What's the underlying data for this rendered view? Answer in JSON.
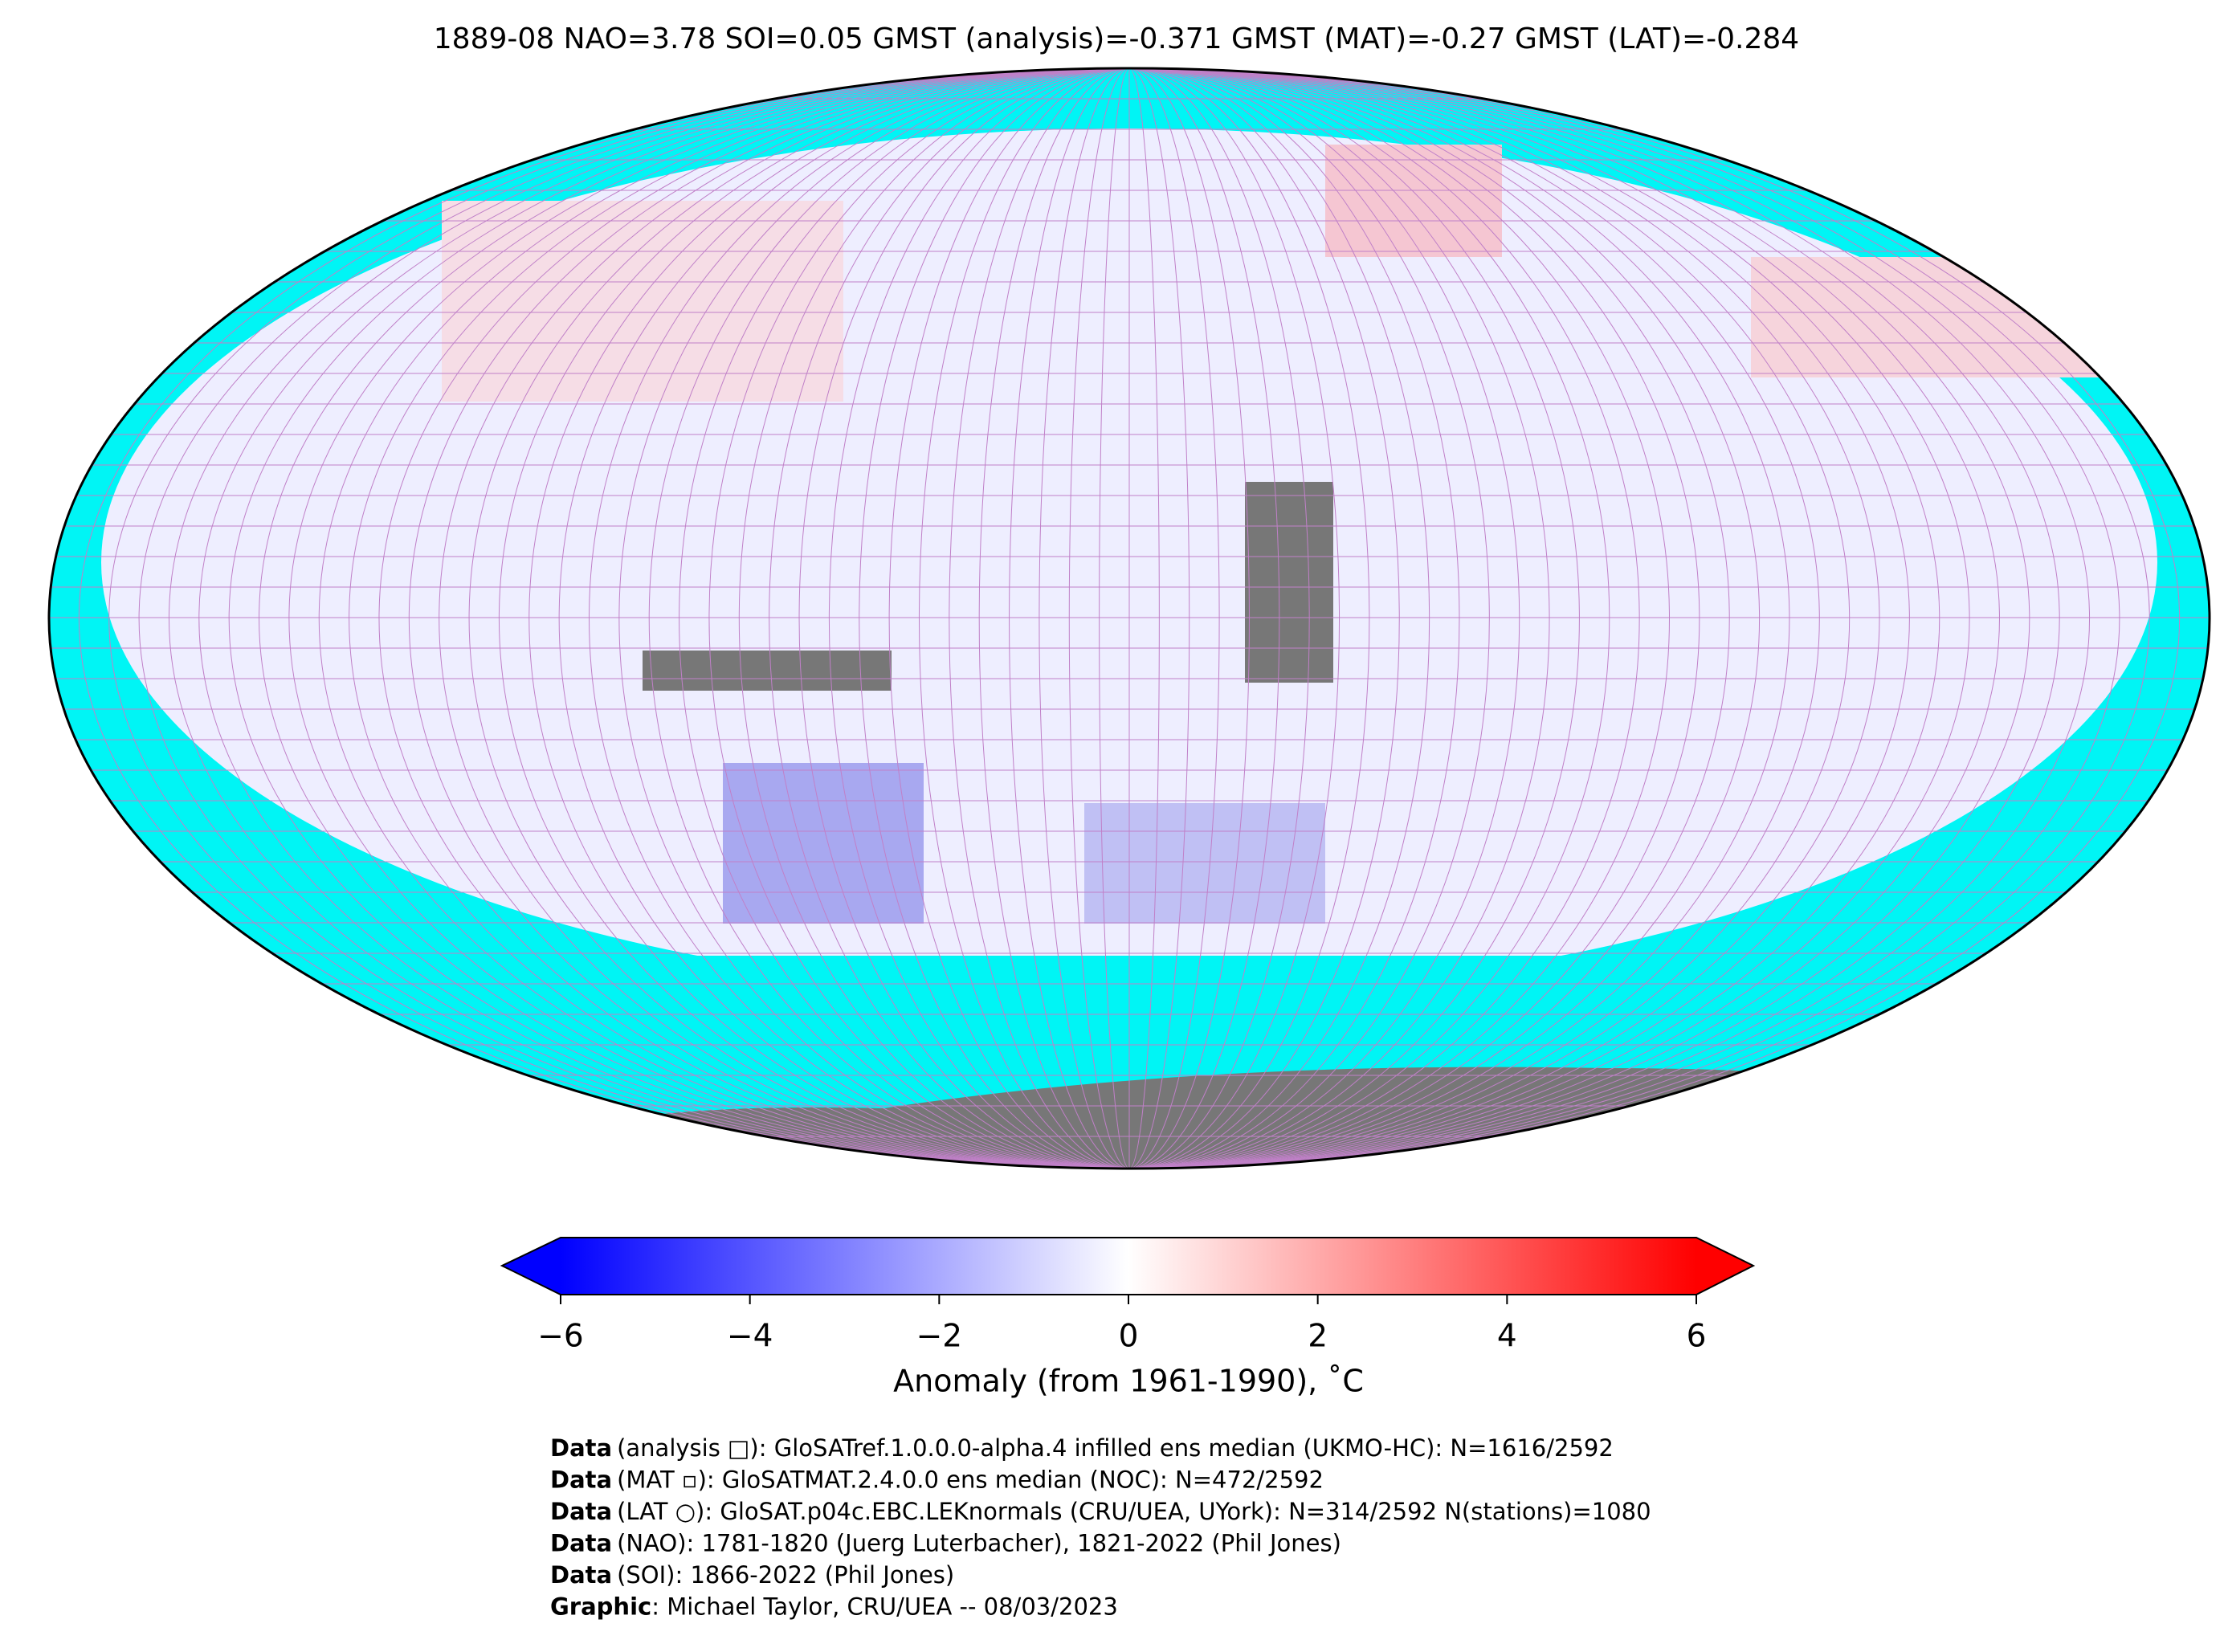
{
  "title": "1889-08 NAO=3.78 SOI=0.05 GMST (analysis)=-0.371 GMST (MAT)=-0.27 GMST (LAT)=-0.284",
  "colorbar": {
    "range": [
      -6,
      6
    ],
    "ticks": [
      {
        "value": -6,
        "label": "−6"
      },
      {
        "value": -4,
        "label": "−4"
      },
      {
        "value": -2,
        "label": "−2"
      },
      0,
      2,
      4,
      6
    ],
    "label": "Anomaly (from 1961-1990), ˚C"
  },
  "footer": [
    {
      "label": "Data",
      "text": "(analysis □): GloSATref.1.0.0.0-alpha.4 infilled ens median (UKMO-HC): N=1616/2592"
    },
    {
      "label": "Data",
      "text": "(MAT ▫): GloSATMAT.2.4.0.0 ens median (NOC): N=472/2592"
    },
    {
      "label": "Data",
      "text": "(LAT ○): GloSAT.p04c.EBC.LEKnormals (CRU/UEA, UYork): N=314/2592 N(stations)=1080"
    },
    {
      "label": "Data",
      "text": "(NAO): 1781-1820 (Juerg Luterbacher), 1821-2022 (Phil Jones)"
    },
    {
      "label": "Data",
      "text": "(SOI): 1866-2022 (Phil Jones)"
    },
    {
      "label": "Graphic",
      "text": ": Michael Taylor, CRU/UEA -- 08/03/2023"
    }
  ]
}
